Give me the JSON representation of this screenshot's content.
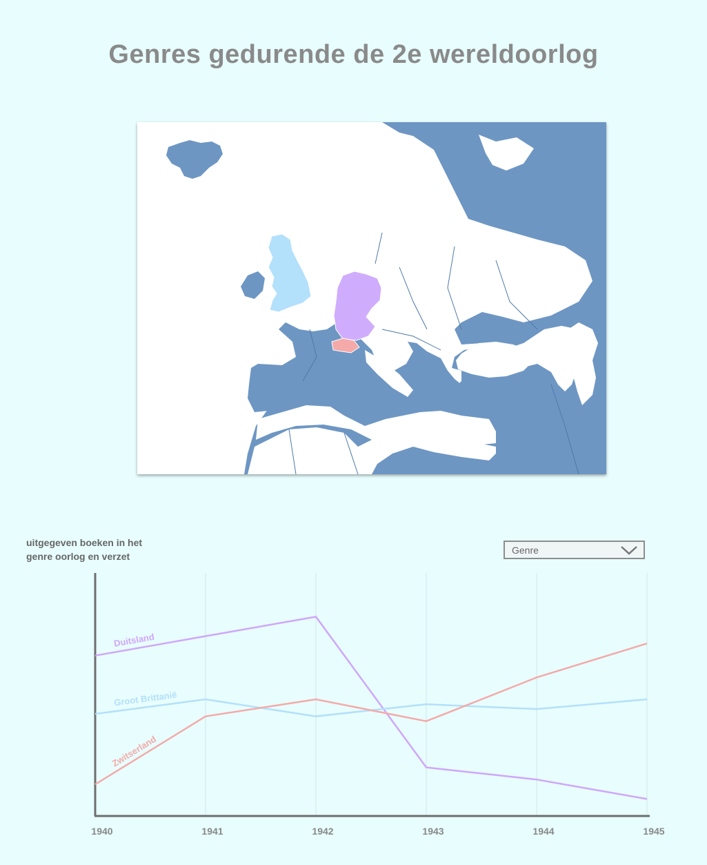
{
  "title": "Genres gedurende de 2e wereldoorlog",
  "map": {
    "highlighted": [
      {
        "name": "Groot Brittanië",
        "color": "#b3e0fb"
      },
      {
        "name": "Duitsland",
        "color": "#cfadfc"
      },
      {
        "name": "Zwitserland",
        "color": "#f3aaa9"
      }
    ],
    "land_color": "#6d96c3",
    "sea_color": "#ffffff"
  },
  "dropdown": {
    "selected": "Genre",
    "icon": "chevron-down-icon"
  },
  "chart_data": {
    "type": "line",
    "ylabel": "uitgegeven boeken in het genre oorlog en verzet",
    "x": [
      "1940",
      "1941",
      "1942",
      "1943",
      "1944",
      "1945"
    ],
    "ylim": [
      0,
      100
    ],
    "grid": true,
    "series": [
      {
        "name": "Duitsland",
        "color": "#cfa6fb",
        "values": [
          66,
          74,
          82,
          20,
          15,
          7
        ]
      },
      {
        "name": "Groot Brittanië",
        "color": "#b3e0fb",
        "values": [
          42,
          48,
          41,
          46,
          44,
          48
        ]
      },
      {
        "name": "Zwitserland",
        "color": "#f3aaa9",
        "values": [
          13,
          41,
          48,
          39,
          57,
          71
        ]
      }
    ]
  }
}
